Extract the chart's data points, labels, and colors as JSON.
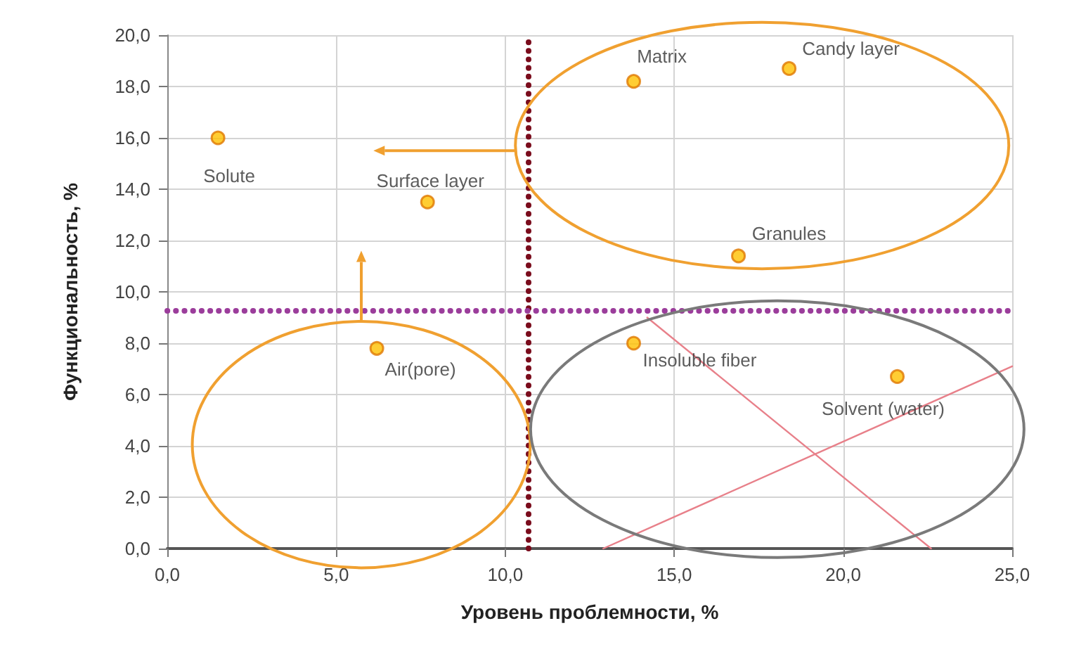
{
  "chart_data": {
    "type": "scatter",
    "xlabel": "Уровень проблемности, %",
    "ylabel": "Функциональность, %",
    "xlim": [
      0,
      25
    ],
    "xticks": [
      {
        "value": 0,
        "label": "0,0"
      },
      {
        "value": 5,
        "label": "5,0"
      },
      {
        "value": 10,
        "label": "10,0"
      },
      {
        "value": 15,
        "label": "15,0"
      },
      {
        "value": 20,
        "label": "20,0"
      },
      {
        "value": 25,
        "label": "25,0"
      }
    ],
    "ylim": [
      0,
      20
    ],
    "yticks": [
      {
        "value": 0,
        "label": "0,0"
      },
      {
        "value": 2,
        "label": "2,0"
      },
      {
        "value": 4,
        "label": "4,0"
      },
      {
        "value": 6,
        "label": "6,0"
      },
      {
        "value": 8,
        "label": "8,0"
      },
      {
        "value": 10,
        "label": "10,0"
      },
      {
        "value": 12,
        "label": "12,0"
      },
      {
        "value": 14,
        "label": "14,0"
      },
      {
        "value": 16,
        "label": "16,0"
      },
      {
        "value": 18,
        "label": "18,0"
      },
      {
        "value": 20,
        "label": "20,0"
      }
    ],
    "grid": true,
    "marker": "circle",
    "series": [
      {
        "name": "Solute",
        "color": "#ffc000",
        "x": [
          1.5
        ],
        "values": [
          16.0
        ]
      },
      {
        "name": "Surface layer",
        "color": "#ffc000",
        "x": [
          7.7
        ],
        "values": [
          13.5
        ]
      },
      {
        "name": "Matrix",
        "color": "#ffc000",
        "x": [
          13.8
        ],
        "values": [
          18.2
        ]
      },
      {
        "name": "Candy layer",
        "color": "#ffc000",
        "x": [
          18.4
        ],
        "values": [
          18.7
        ]
      },
      {
        "name": "Granules",
        "color": "#ffc000",
        "x": [
          16.9
        ],
        "values": [
          11.4
        ]
      },
      {
        "name": "Air(pore)",
        "color": "#ffc000",
        "x": [
          6.2
        ],
        "values": [
          7.8
        ]
      },
      {
        "name": "Insoluble fiber",
        "color": "#ffc000",
        "x": [
          13.8
        ],
        "values": [
          8.0
        ]
      },
      {
        "name": "Solvent (water)",
        "color": "#ffc000",
        "x": [
          21.6
        ],
        "values": [
          6.7
        ]
      },
      {
        "type": "line",
        "color": "#e8808a",
        "marker": "none",
        "x": [
          12.9,
          25
        ],
        "values": [
          0,
          7.1
        ]
      },
      {
        "type": "line",
        "color": "#e8808a",
        "marker": "none",
        "x": [
          14.2,
          22.6
        ],
        "values": [
          9.0,
          0
        ]
      }
    ],
    "ref_lines": [
      {
        "axis": "x",
        "value": 10.7,
        "color": "#7a0c1c",
        "line_style": "dotted"
      },
      {
        "axis": "y",
        "value": 9.3,
        "color": "#9b3d9b",
        "line_style": "dotted"
      }
    ]
  }
}
